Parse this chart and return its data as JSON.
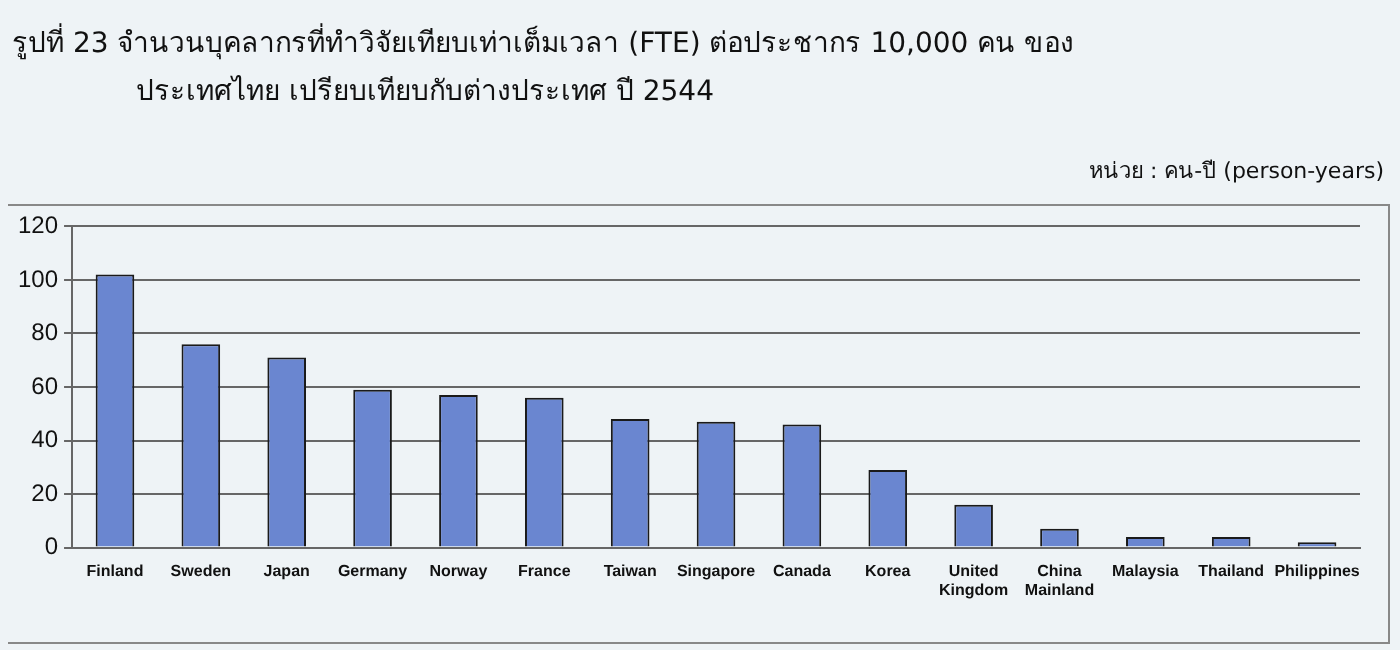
{
  "chart_data": {
    "type": "bar",
    "title": "รูปที่ 23 จำนวนบุคลากรที่ทำวิจัยเทียบเท่าเต็มเวลา (FTE) ต่อประชากร 10,000 คน ของประเทศไทย เปรียบเทียบกับต่างประเทศ ปี 2544",
    "annotations": [
      "หน่วย : คน-ปี (person-years)"
    ],
    "categories": [
      "Finland",
      "Sweden",
      "Japan",
      "Germany",
      "Norway",
      "France",
      "Taiwan",
      "Singapore",
      "Canada",
      "Korea",
      "United Kingdom",
      "China Mainland",
      "Malaysia",
      "Thailand",
      "Philippines"
    ],
    "values": [
      102,
      76,
      71,
      59,
      57,
      56,
      48,
      47,
      46,
      29,
      16,
      7,
      4,
      4,
      2
    ],
    "color": "#6a86d0",
    "ylim": [
      0,
      120
    ],
    "yticks": [
      0,
      20,
      40,
      60,
      80,
      100,
      120
    ],
    "grid": "y",
    "legend": false
  }
}
